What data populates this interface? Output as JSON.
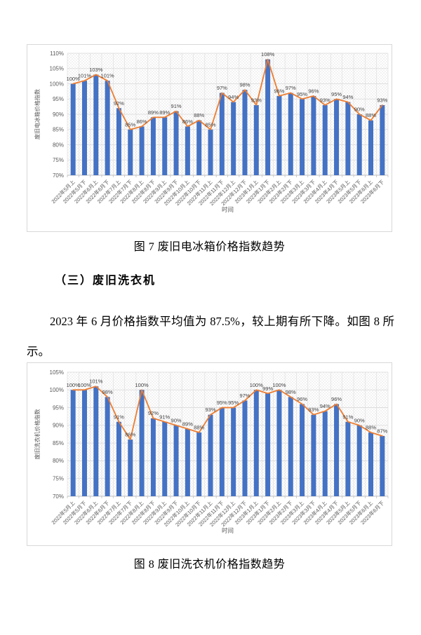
{
  "colors": {
    "bar": "#4472C4",
    "line": "#ED7D31",
    "grid": "#d9d9d9",
    "axis": "#bfbfbf",
    "tick_text": "#595959",
    "data_label_text": "#404040",
    "pattern": "#e4e4e4"
  },
  "figure7": {
    "caption": "图 7  废旧电冰箱价格指数趋势"
  },
  "section": {
    "heading": "（三）废旧洗衣机"
  },
  "paragraph": {
    "text": "2023 年 6 月价格指数平均值为 87.5%，较上期有所下降。如图 8 所示。"
  },
  "figure8": {
    "caption": "图 8  废旧洗衣机价格指数趋势"
  },
  "chart_data": [
    {
      "type": "bar",
      "line_overlay": true,
      "title": "",
      "ylabel": "废旧电冰箱价格指数",
      "xlabel": "时间",
      "unit": "%",
      "ylim": [
        70,
        110
      ],
      "ytick_step": 5,
      "grid": true,
      "legend": "none",
      "categories": [
        "2022年5月上",
        "2022年5月下",
        "2022年6月上",
        "2022年6月下",
        "2022年7月上",
        "2022年7月下",
        "2022年8月上",
        "2022年8月下",
        "2022年9月上",
        "2022年9月下",
        "2022年10月上",
        "2022年10月下",
        "2022年11月上",
        "2022年11月下",
        "2022年12月上",
        "2022年12月下",
        "2023年1月上",
        "2023年1月下",
        "2023年2月上",
        "2023年2月下",
        "2023年3月上",
        "2023年3月下",
        "2023年4月上",
        "2023年4月下",
        "2023年5月上",
        "2023年5月下",
        "2023年6月上",
        "2023年6月下"
      ],
      "values": [
        100,
        101,
        103,
        101,
        92,
        85,
        86,
        89,
        89,
        91,
        86,
        88,
        85,
        97,
        94,
        98,
        93,
        108,
        96,
        97,
        95,
        96,
        93,
        95,
        94,
        90,
        88,
        93
      ]
    },
    {
      "type": "bar",
      "line_overlay": true,
      "title": "",
      "ylabel": "废旧洗衣机价格指数",
      "xlabel": "时间",
      "unit": "%",
      "ylim": [
        70,
        105
      ],
      "ytick_step": 5,
      "grid": true,
      "legend": "none",
      "categories": [
        "2022年5月上",
        "2022年5月下",
        "2022年6月上",
        "2022年6月下",
        "2022年7月上",
        "2022年7月下",
        "2022年8月上",
        "2022年8月下",
        "2022年9月上",
        "2022年9月下",
        "2022年10月上",
        "2022年10月下",
        "2022年11月上",
        "2022年11月下",
        "2022年12月上",
        "2022年12月下",
        "2023年1月上",
        "2023年1月下",
        "2023年2月上",
        "2023年2月下",
        "2023年3月上",
        "2023年3月下",
        "2023年4月上",
        "2023年4月下",
        "2023年5月上",
        "2023年5月下",
        "2023年6月上",
        "2023年6月下"
      ],
      "values": [
        100,
        100,
        101,
        98,
        91,
        86,
        100,
        92,
        91,
        90,
        89,
        88,
        93,
        95,
        95,
        97,
        100,
        99,
        100,
        98,
        96,
        93,
        94,
        96,
        91,
        90,
        88,
        87
      ]
    }
  ]
}
